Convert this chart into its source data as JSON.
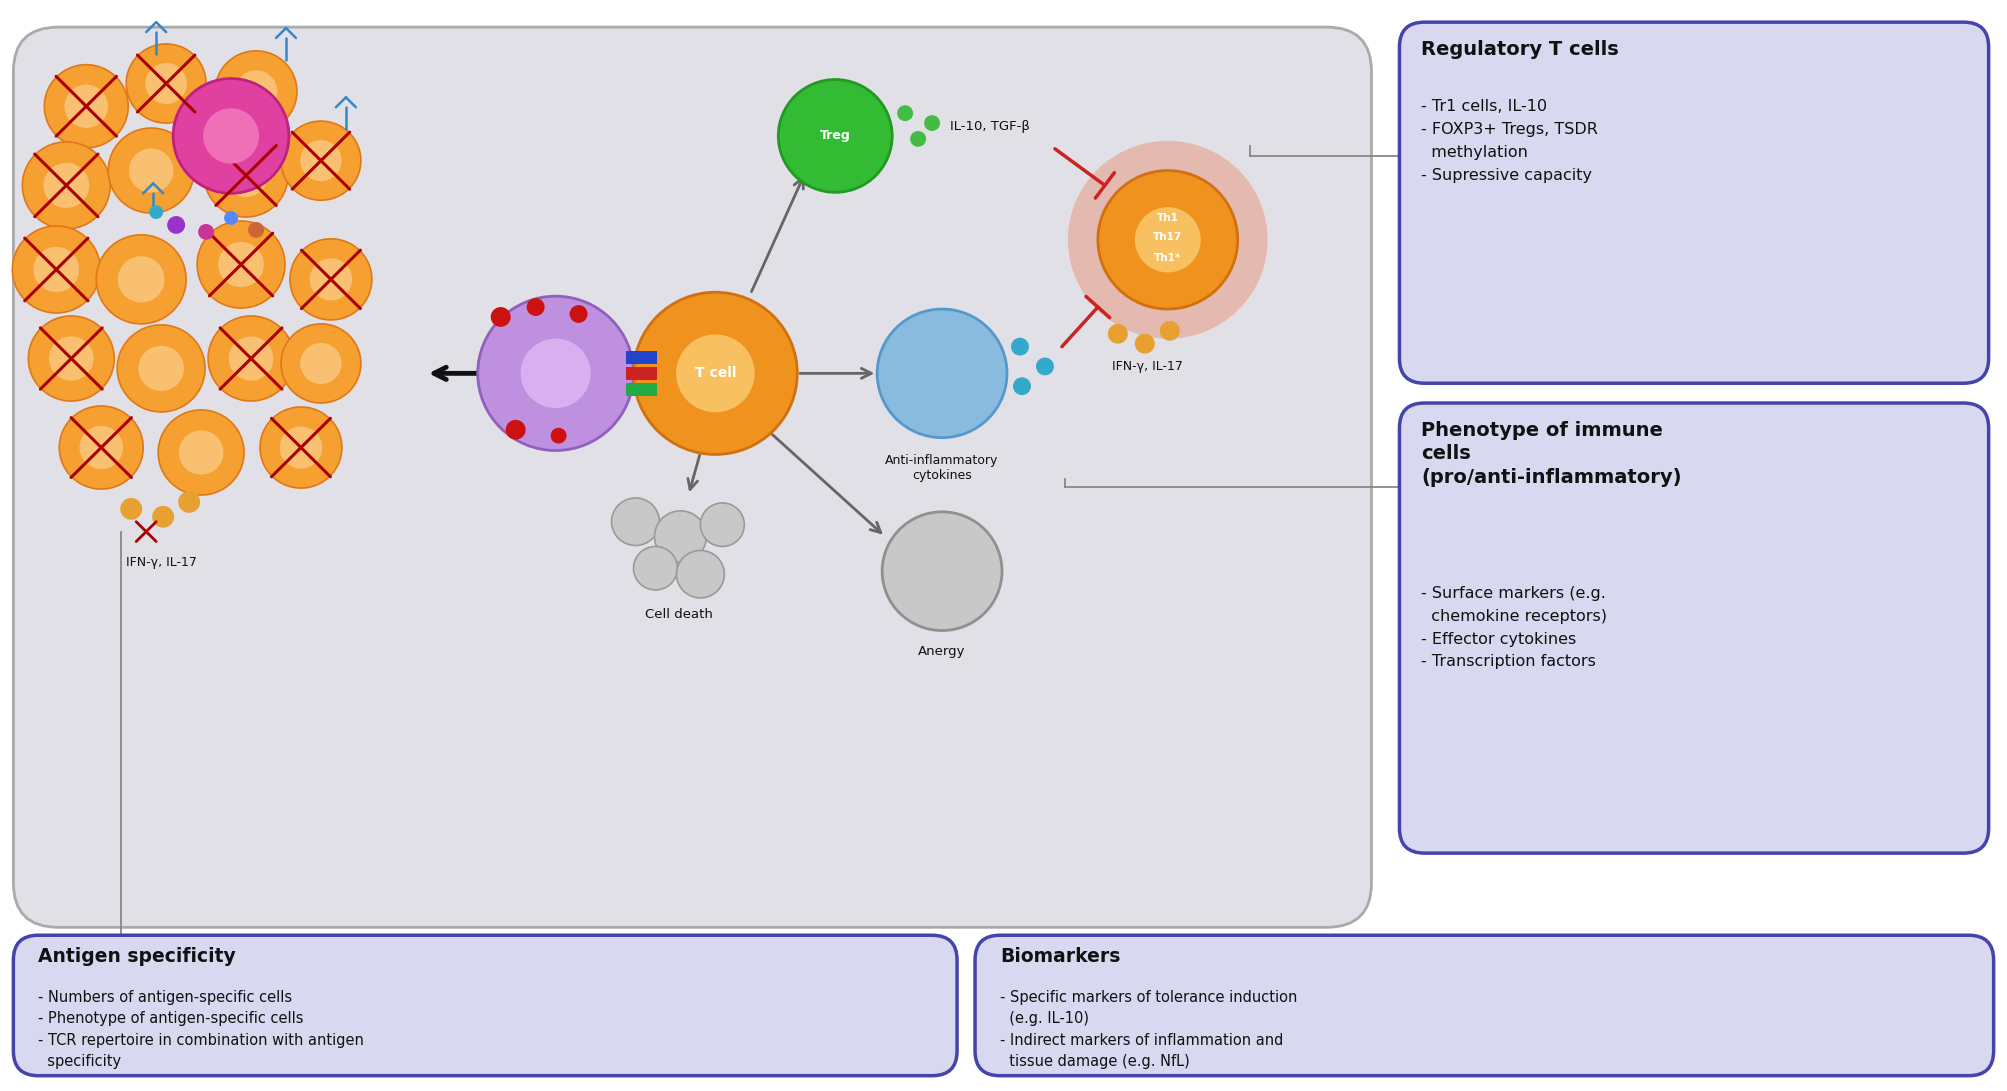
{
  "bg_main": "#e0e0e6",
  "bg_white": "#ffffff",
  "box_fill_purple": "#d8d8f0",
  "box_border_purple": "#4444aa",
  "orange_cell": "#f0921e",
  "pink_cell": "#e040a0",
  "purple_cell": "#a070c0",
  "green_treg": "#3db03d",
  "blue_cytokine": "#88bbdd",
  "gray_anergy": "#b0b0b0",
  "red_inhibit": "#cc2222",
  "dark_arrow": "#333333",
  "text_dark": "#111111",
  "right_boxes": [
    {
      "title": "Regulatory T cells",
      "bullets": [
        "- Tr1 cells, IL-10",
        "- FOXP3+ Tregs, TSDR\n  methylation",
        "- Supressive capacity"
      ]
    },
    {
      "title": "Phenotype of immune\ncells\n(pro/anti-inflammatory)",
      "bullets": [
        "- Surface markers (e.g.\n  chemokine receptors)",
        "- Effector cytokines",
        "- Transcription factors"
      ]
    }
  ],
  "bottom_boxes": [
    {
      "title": "Antigen specificity",
      "bullets": [
        "- Numbers of antigen-specific cells",
        "- Phenotype of antigen-specific cells",
        "- TCR repertoire in combination with antigen\n  specificity"
      ]
    },
    {
      "title": "Biomarkers",
      "bullets": [
        "- Specific markers of tolerance induction\n  (e.g. IL-10)",
        "- Indirect markers of inflammation and\n  tissue damage (e.g. NfL)"
      ]
    }
  ]
}
